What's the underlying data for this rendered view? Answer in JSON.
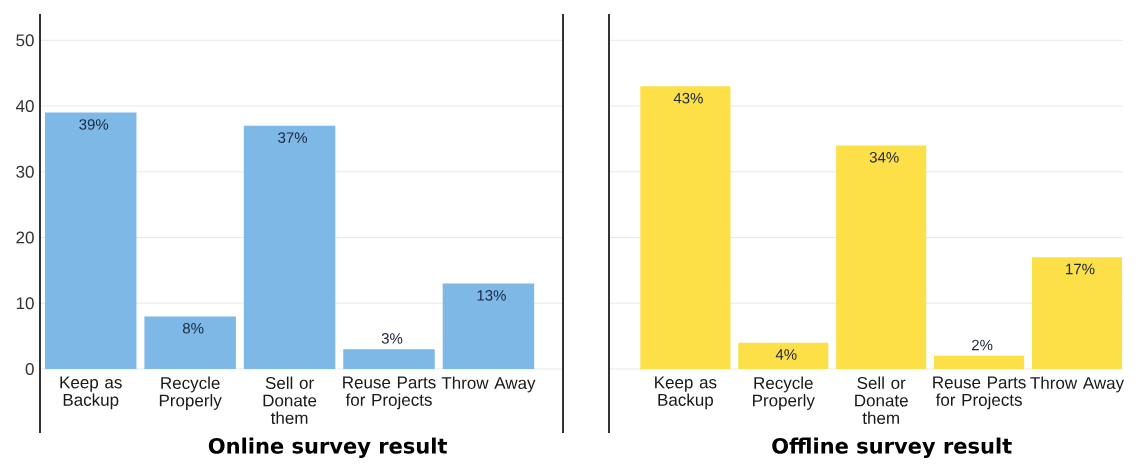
{
  "chart_data": [
    {
      "type": "bar",
      "title": "Online survey result",
      "categories": [
        "Keep as Backup",
        "Recycle Properly",
        "Sell or Donate them",
        "Reuse Parts for Projects",
        "Throw Away"
      ],
      "values": [
        39,
        8,
        37,
        3,
        13
      ],
      "value_labels": [
        "39%",
        "8%",
        "37%",
        "3%",
        "13%"
      ],
      "color": "#7db8e6",
      "ylim": [
        0,
        54
      ],
      "yticks": [
        0,
        10,
        20,
        30,
        40,
        50
      ],
      "grid": "y"
    },
    {
      "type": "bar",
      "title": "Offline survey result",
      "categories": [
        "Keep as Backup",
        "Recycle Properly",
        "Sell or Donate them",
        "Reuse Parts for Projects",
        "Throw Away"
      ],
      "values": [
        43,
        4,
        34,
        2,
        17
      ],
      "value_labels": [
        "43%",
        "4%",
        "34%",
        "2%",
        "17%"
      ],
      "color": "#fddf48",
      "ylim": [
        0,
        54
      ],
      "yticks": [
        0,
        10,
        20,
        30,
        40,
        50
      ],
      "grid": "y",
      "tick_labels": "x"
    }
  ]
}
